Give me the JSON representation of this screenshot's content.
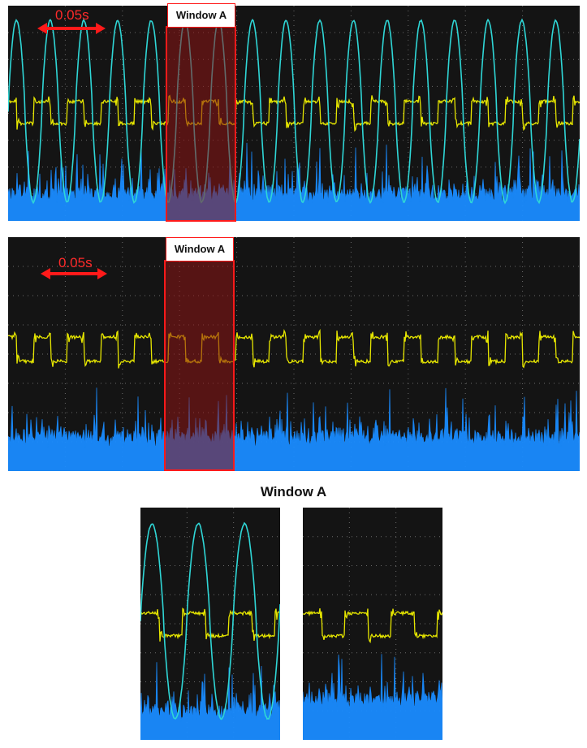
{
  "panel_top": {
    "window_label": "Window A",
    "scale_label": "0.05s",
    "channels": [
      "cyan-sine",
      "yellow-square",
      "blue-noise"
    ]
  },
  "panel_middle": {
    "window_label": "Window A",
    "scale_label": "0.05s",
    "channels": [
      "yellow-square",
      "blue-noise"
    ]
  },
  "zoom_section": {
    "title": "Window A"
  },
  "colors": {
    "screen_bg": "#141414",
    "cyan_trace": "#2fd6d6",
    "yellow_trace": "#e6e600",
    "blue_trace": "#1a8cff",
    "window_highlight": "#7a1010",
    "window_border": "#ff1a1a",
    "scale_marker": "#ff1a1a"
  }
}
